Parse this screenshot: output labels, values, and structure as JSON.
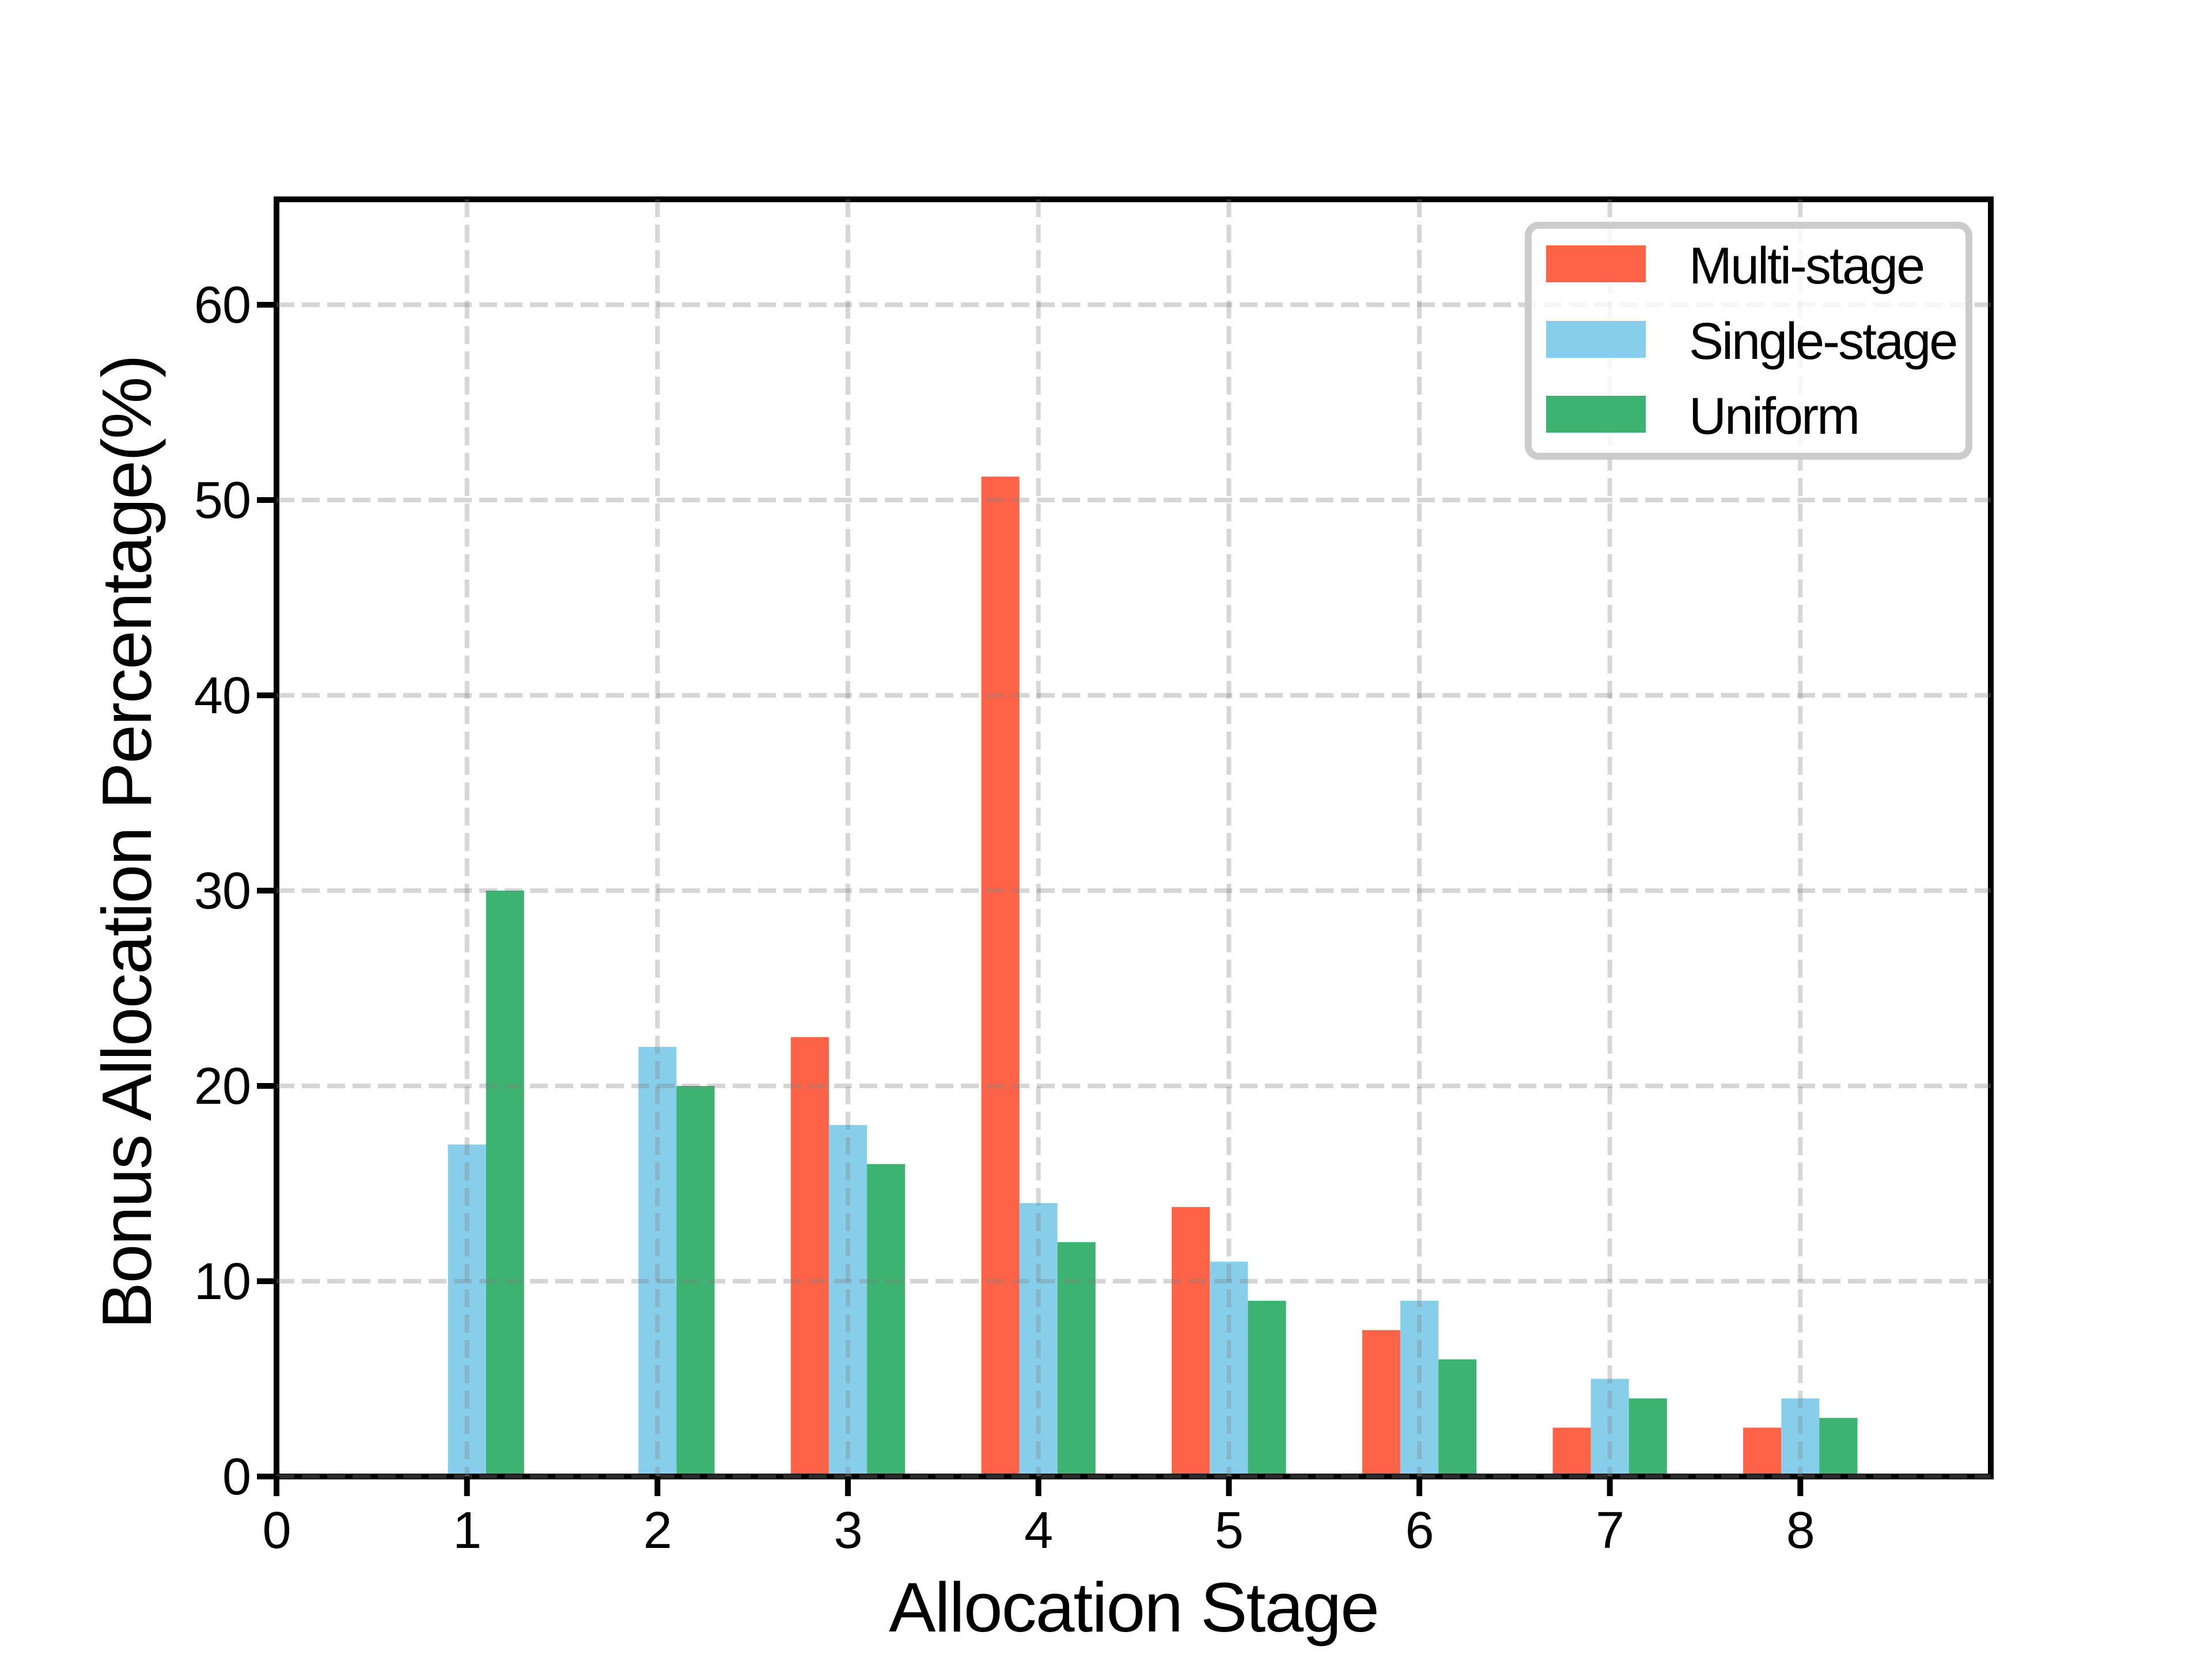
{
  "figure": {
    "background_color": "#ffffff",
    "grid_color": "#7f7f7f",
    "grid_opacity": 0.32,
    "spine_color": "#000000"
  },
  "chart_data": {
    "type": "bar",
    "title": "",
    "xlabel": "Allocation Stage",
    "ylabel": "Bonus Allocation Percentage(%)",
    "categories": [
      1,
      2,
      3,
      4,
      5,
      6,
      7,
      8
    ],
    "series": [
      {
        "name": "Multi-stage",
        "color": "#FF6347",
        "values": [
          0,
          0,
          22.5,
          51.2,
          13.8,
          7.5,
          2.5,
          2.5
        ]
      },
      {
        "name": "Single-stage",
        "color": "#87CEEB",
        "values": [
          17,
          22,
          18,
          14,
          11,
          9,
          5,
          4
        ]
      },
      {
        "name": "Uniform",
        "color": "#3CB371",
        "values": [
          30,
          20,
          16,
          12,
          9,
          6,
          4,
          3
        ]
      }
    ],
    "bar_width": 0.2,
    "group_offsets": [
      -0.2,
      0,
      0.2
    ],
    "xticks": [
      0,
      1,
      2,
      3,
      4,
      5,
      6,
      7,
      8
    ],
    "yticks": [
      0,
      10,
      20,
      30,
      40,
      50,
      60
    ],
    "xlim": [
      0,
      9
    ],
    "ylim": [
      0,
      65.4
    ],
    "grid": true,
    "grid_style": "dashed",
    "legend_position": "upper right"
  }
}
